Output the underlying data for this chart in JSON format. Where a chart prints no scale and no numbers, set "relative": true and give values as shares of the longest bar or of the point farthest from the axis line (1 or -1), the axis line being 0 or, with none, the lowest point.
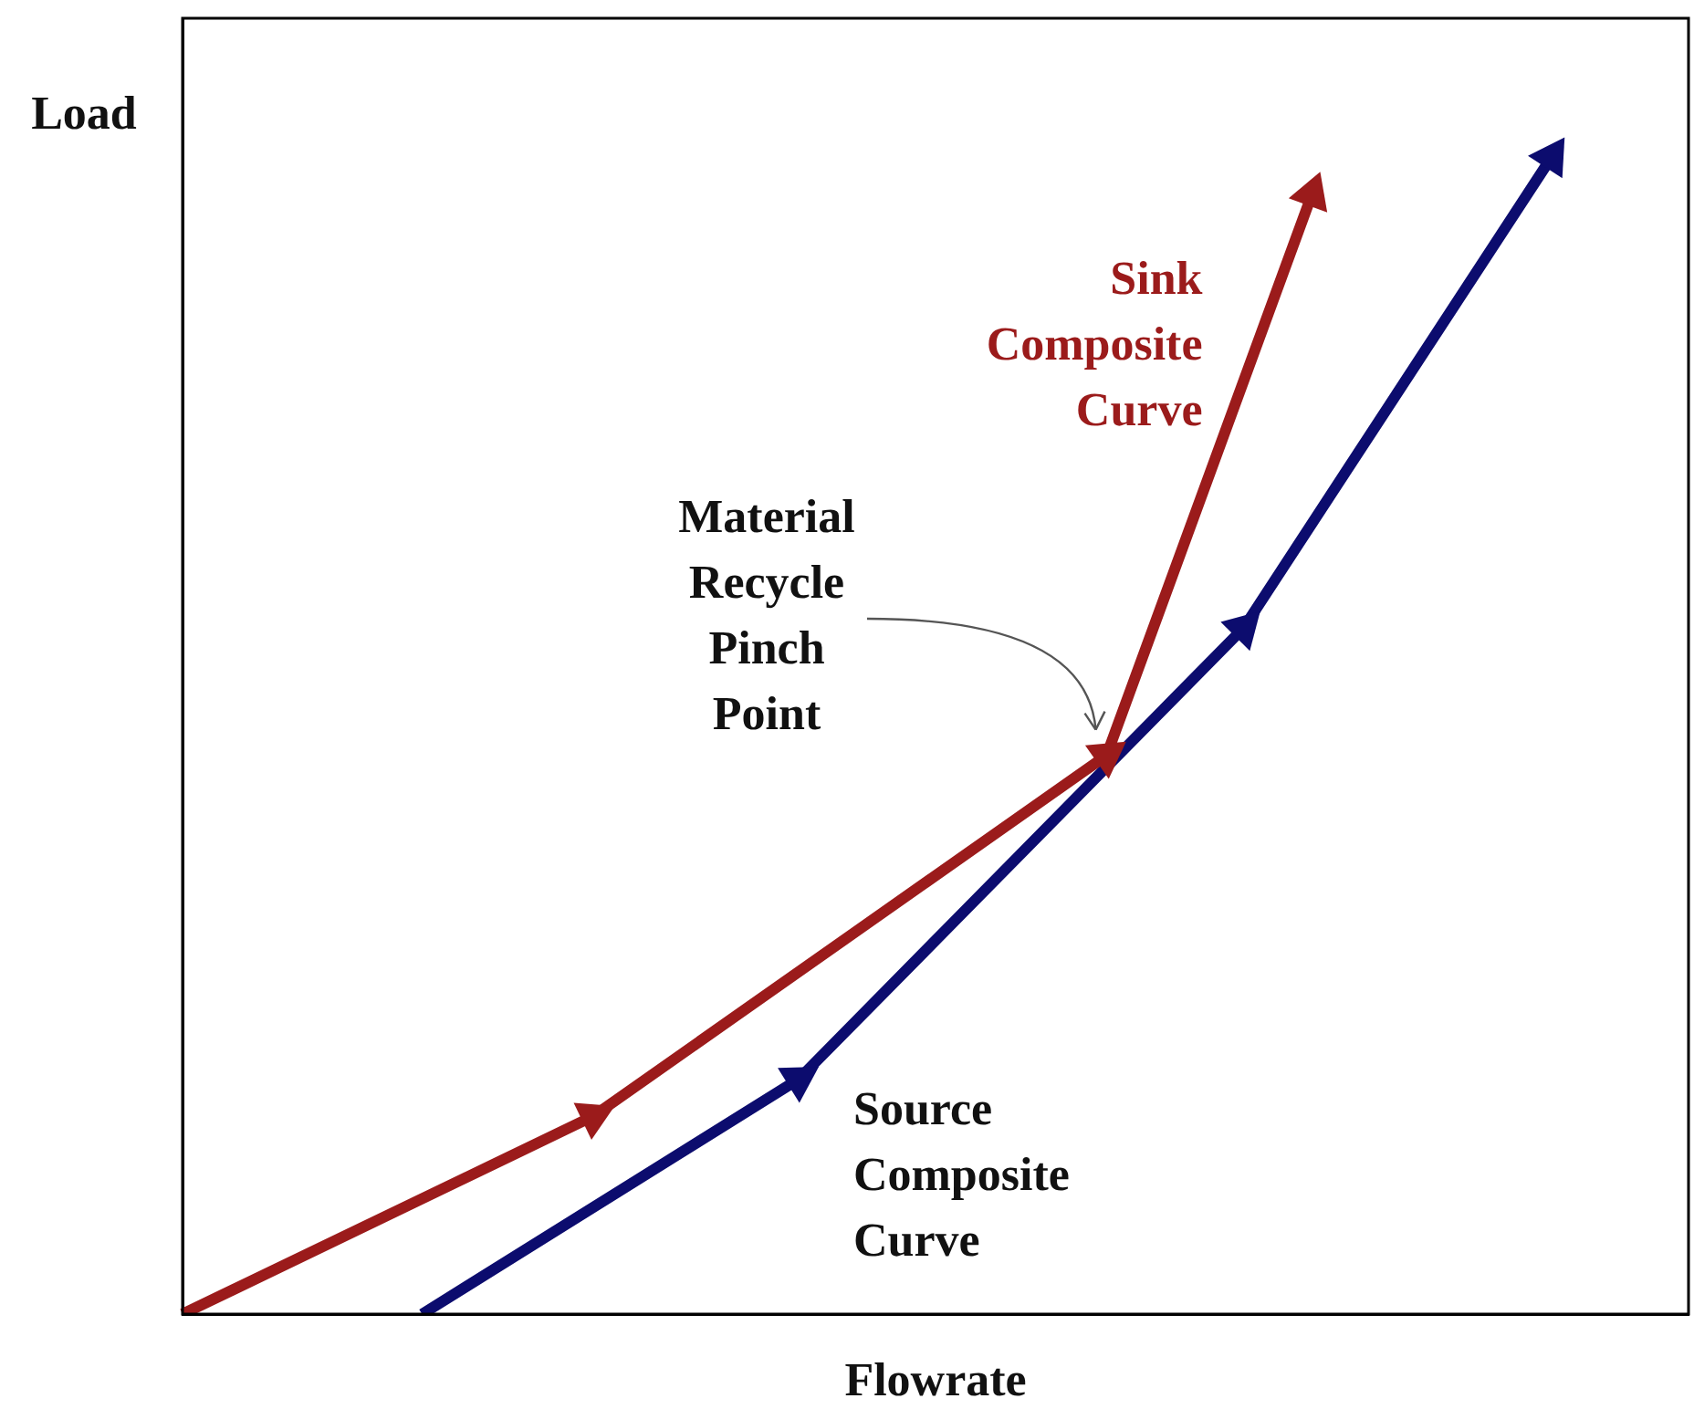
{
  "chart_data": {
    "type": "line",
    "relative": true,
    "xlabel": "Flowrate",
    "ylabel": "Load",
    "marker": "triangle",
    "line_style": "solid",
    "grid": false,
    "legend": false,
    "categories": [
      null,
      null,
      null,
      null,
      null,
      null,
      null,
      null,
      null,
      null,
      null,
      null,
      null,
      null,
      null,
      null,
      null,
      null,
      null,
      null,
      null,
      null,
      null,
      null,
      null,
      null,
      null,
      null,
      null,
      null,
      null,
      null,
      null,
      null,
      null,
      null,
      null,
      null,
      null,
      null,
      null,
      null,
      null,
      null,
      null
    ],
    "series": [
      {
        "name": "Sink Composite Curve",
        "color": "#9b1b1b",
        "values": [
          0,
          null,
          null,
          null,
          null,
          null,
          null,
          null,
          null,
          null,
          null,
          null,
          0.171,
          null,
          null,
          null,
          null,
          null,
          null,
          null,
          null,
          null,
          null,
          null,
          null,
          null,
          null,
          0.483,
          null,
          null,
          null,
          null,
          null,
          0.968,
          null,
          null,
          null,
          null,
          null,
          null,
          null,
          null,
          null,
          null,
          null
        ]
      },
      {
        "name": "Source Composite Curve",
        "color": "#0c0c6e",
        "values": [
          null,
          null,
          null,
          null,
          null,
          null,
          null,
          0,
          null,
          null,
          null,
          null,
          null,
          null,
          null,
          null,
          null,
          null,
          0.203,
          null,
          null,
          null,
          null,
          null,
          null,
          null,
          null,
          null,
          null,
          null,
          null,
          0.593,
          null,
          null,
          null,
          null,
          null,
          null,
          null,
          null,
          1,
          null,
          null,
          null,
          null
        ]
      }
    ],
    "annotations": [
      "Material Recycle Pinch Point"
    ]
  }
}
